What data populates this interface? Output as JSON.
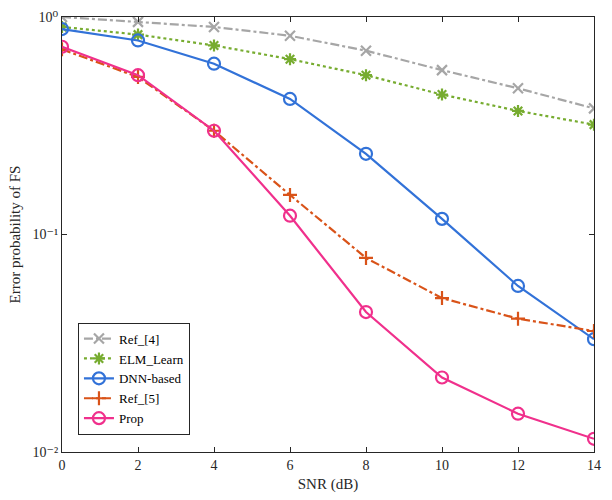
{
  "chart_data": {
    "type": "line",
    "x_label": "SNR (dB)",
    "y_label": "Error probability of FS",
    "x": [
      0,
      2,
      4,
      6,
      8,
      10,
      12,
      14
    ],
    "series": [
      {
        "name": "Ref_[4]",
        "color": "#a6a6a6",
        "marker": "x",
        "line_style": "dashdot",
        "values": [
          1.0,
          0.95,
          0.9,
          0.82,
          0.7,
          0.57,
          0.47,
          0.38
        ]
      },
      {
        "name": "ELM_Learn",
        "color": "#77ac30",
        "marker": "asterisk",
        "line_style": "dot",
        "values": [
          0.9,
          0.83,
          0.74,
          0.64,
          0.54,
          0.44,
          0.37,
          0.32
        ]
      },
      {
        "name": "DNN-based",
        "color": "#3272d8",
        "marker": "circle",
        "line_style": "solid",
        "values": [
          0.88,
          0.78,
          0.61,
          0.42,
          0.235,
          0.118,
          0.058,
          0.033
        ]
      },
      {
        "name": "Ref_[5]",
        "color": "#d95319",
        "marker": "plus",
        "line_style": "dashdot",
        "values": [
          0.71,
          0.53,
          0.3,
          0.152,
          0.078,
          0.051,
          0.041,
          0.036
        ]
      },
      {
        "name": "Prop",
        "color": "#f0308c",
        "marker": "circle",
        "line_style": "solid",
        "values": [
          0.73,
          0.54,
          0.3,
          0.122,
          0.044,
          0.022,
          0.015,
          0.0115
        ]
      }
    ],
    "xlim": [
      0,
      14
    ],
    "xticks": [
      0,
      2,
      4,
      6,
      8,
      10,
      12,
      14
    ],
    "ylim": [
      0.01,
      1
    ],
    "yticks": [
      {
        "value": 0.01,
        "label": "10⁻²"
      },
      {
        "value": 0.1,
        "label": "10⁻¹"
      },
      {
        "value": 1,
        "label": "10⁰"
      }
    ],
    "log": "y",
    "grid": false,
    "legend": "lower left"
  }
}
